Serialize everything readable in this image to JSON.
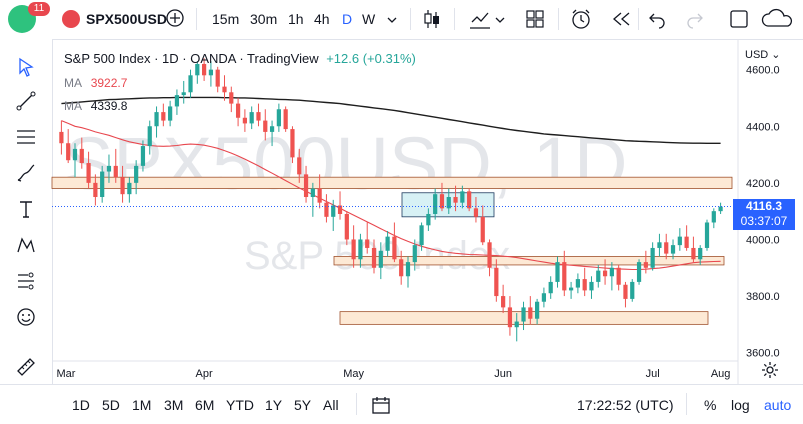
{
  "toolbar": {
    "badge_count": "11",
    "symbol": "SPX500USD",
    "intervals": [
      "15m",
      "30m",
      "1h",
      "4h",
      "D",
      "W"
    ],
    "active_interval": "D"
  },
  "legend": {
    "title": "S&P 500 Index · 1D · OANDA · TradingView",
    "change": "+12.6 (+0.31%)",
    "ma1_label": "MA",
    "ma1_value": "3922.7",
    "ma2_label": "MA",
    "ma2_value": "4339.8"
  },
  "watermark": {
    "symbol": "SPX500USD, 1D",
    "name": "S&P 500 Index"
  },
  "price_axis": {
    "currency": "USD",
    "ticks": [
      "4600.0",
      "4400.0",
      "4200.0",
      "4000.0",
      "3800.0",
      "3600.0"
    ],
    "last_price": "4116.3",
    "countdown": "03:37:07"
  },
  "time_axis": {
    "ticks": [
      "Mar",
      "Apr",
      "May",
      "Jun",
      "Jul",
      "Aug"
    ]
  },
  "bottom": {
    "ranges": [
      "1D",
      "5D",
      "1M",
      "3M",
      "6M",
      "YTD",
      "1Y",
      "5Y",
      "All"
    ],
    "clock": "17:22:52 (UTC)",
    "percent": "%",
    "log": "log",
    "auto": "auto"
  },
  "colors": {
    "up": "#26a69a",
    "down": "#ef5350",
    "accent": "#2962ff",
    "ma_fast": "#e8474e",
    "ma_slow": "#1e1e1e",
    "zone_fill": "#fde9d5",
    "zone_border": "#a0522d",
    "box_fill": "#c9ecf2",
    "badge": "#2ec27e"
  },
  "chart_data": {
    "type": "candlestick",
    "ylim": [
      3560,
      4680
    ],
    "x_ticks": [
      "Mar",
      "Apr",
      "May",
      "Jun",
      "Jul",
      "Aug"
    ],
    "ohlc": [
      [
        4380,
        4420,
        4300,
        4340
      ],
      [
        4340,
        4390,
        4270,
        4280
      ],
      [
        4280,
        4340,
        4220,
        4320
      ],
      [
        4320,
        4360,
        4250,
        4270
      ],
      [
        4270,
        4310,
        4180,
        4200
      ],
      [
        4200,
        4230,
        4120,
        4150
      ],
      [
        4150,
        4260,
        4130,
        4240
      ],
      [
        4240,
        4300,
        4200,
        4260
      ],
      [
        4260,
        4320,
        4200,
        4220
      ],
      [
        4220,
        4260,
        4130,
        4160
      ],
      [
        4160,
        4220,
        4130,
        4200
      ],
      [
        4200,
        4280,
        4160,
        4260
      ],
      [
        4260,
        4350,
        4240,
        4330
      ],
      [
        4330,
        4420,
        4300,
        4400
      ],
      [
        4400,
        4470,
        4360,
        4450
      ],
      [
        4450,
        4480,
        4400,
        4420
      ],
      [
        4420,
        4490,
        4400,
        4470
      ],
      [
        4470,
        4530,
        4440,
        4510
      ],
      [
        4510,
        4560,
        4480,
        4520
      ],
      [
        4520,
        4600,
        4500,
        4580
      ],
      [
        4580,
        4630,
        4550,
        4620
      ],
      [
        4620,
        4640,
        4560,
        4580
      ],
      [
        4580,
        4630,
        4540,
        4600
      ],
      [
        4600,
        4610,
        4520,
        4540
      ],
      [
        4540,
        4580,
        4490,
        4520
      ],
      [
        4520,
        4540,
        4450,
        4480
      ],
      [
        4480,
        4500,
        4400,
        4430
      ],
      [
        4430,
        4460,
        4380,
        4410
      ],
      [
        4410,
        4470,
        4390,
        4450
      ],
      [
        4450,
        4480,
        4400,
        4420
      ],
      [
        4420,
        4460,
        4350,
        4380
      ],
      [
        4380,
        4420,
        4330,
        4400
      ],
      [
        4400,
        4480,
        4380,
        4460
      ],
      [
        4460,
        4470,
        4380,
        4390
      ],
      [
        4390,
        4400,
        4270,
        4290
      ],
      [
        4290,
        4320,
        4200,
        4230
      ],
      [
        4230,
        4260,
        4130,
        4150
      ],
      [
        4150,
        4200,
        4080,
        4180
      ],
      [
        4180,
        4230,
        4110,
        4130
      ],
      [
        4130,
        4160,
        4060,
        4080
      ],
      [
        4080,
        4140,
        4030,
        4120
      ],
      [
        4120,
        4170,
        4070,
        4090
      ],
      [
        4090,
        4100,
        3980,
        4000
      ],
      [
        4000,
        4050,
        3900,
        3930
      ],
      [
        3930,
        4020,
        3900,
        4000
      ],
      [
        4000,
        4060,
        3950,
        3970
      ],
      [
        3970,
        4000,
        3880,
        3900
      ],
      [
        3900,
        3990,
        3860,
        3960
      ],
      [
        3960,
        4030,
        3940,
        4010
      ],
      [
        4010,
        4060,
        3920,
        3930
      ],
      [
        3930,
        3960,
        3840,
        3870
      ],
      [
        3870,
        3940,
        3830,
        3920
      ],
      [
        3920,
        4000,
        3890,
        3980
      ],
      [
        3980,
        4060,
        3960,
        4050
      ],
      [
        4050,
        4110,
        4030,
        4090
      ],
      [
        4090,
        4180,
        4070,
        4160
      ],
      [
        4160,
        4200,
        4100,
        4110
      ],
      [
        4110,
        4180,
        4090,
        4150
      ],
      [
        4150,
        4190,
        4100,
        4130
      ],
      [
        4130,
        4190,
        4110,
        4170
      ],
      [
        4170,
        4180,
        4100,
        4110
      ],
      [
        4110,
        4150,
        4060,
        4080
      ],
      [
        4080,
        4120,
        3980,
        3990
      ],
      [
        3990,
        4000,
        3870,
        3900
      ],
      [
        3900,
        3930,
        3780,
        3800
      ],
      [
        3800,
        3840,
        3740,
        3760
      ],
      [
        3760,
        3800,
        3660,
        3690
      ],
      [
        3690,
        3740,
        3640,
        3710
      ],
      [
        3710,
        3780,
        3680,
        3760
      ],
      [
        3760,
        3800,
        3700,
        3720
      ],
      [
        3720,
        3790,
        3700,
        3780
      ],
      [
        3780,
        3830,
        3760,
        3810
      ],
      [
        3810,
        3870,
        3790,
        3850
      ],
      [
        3850,
        3940,
        3830,
        3920
      ],
      [
        3920,
        3960,
        3800,
        3820
      ],
      [
        3820,
        3850,
        3790,
        3830
      ],
      [
        3830,
        3880,
        3810,
        3860
      ],
      [
        3860,
        3900,
        3800,
        3820
      ],
      [
        3820,
        3870,
        3790,
        3850
      ],
      [
        3850,
        3910,
        3830,
        3890
      ],
      [
        3890,
        3930,
        3840,
        3870
      ],
      [
        3870,
        3920,
        3820,
        3900
      ],
      [
        3900,
        3910,
        3820,
        3840
      ],
      [
        3840,
        3850,
        3760,
        3790
      ],
      [
        3790,
        3860,
        3780,
        3850
      ],
      [
        3850,
        3930,
        3840,
        3920
      ],
      [
        3920,
        3960,
        3880,
        3900
      ],
      [
        3900,
        3990,
        3890,
        3970
      ],
      [
        3970,
        4020,
        3940,
        3990
      ],
      [
        3990,
        4020,
        3930,
        3950
      ],
      [
        3950,
        4000,
        3930,
        3980
      ],
      [
        3980,
        4040,
        3960,
        4010
      ],
      [
        4010,
        4050,
        3960,
        3970
      ],
      [
        3970,
        4010,
        3920,
        3930
      ],
      [
        3930,
        3980,
        3910,
        3970
      ],
      [
        3970,
        4070,
        3960,
        4060
      ],
      [
        4060,
        4110,
        4040,
        4100
      ],
      [
        4100,
        4130,
        4090,
        4116
      ]
    ],
    "series": [
      {
        "name": "MA",
        "values": [
          4420,
          4410,
          4400,
          4395,
          4388,
          4380,
          4374,
          4368,
          4360,
          4352,
          4345,
          4340,
          4335,
          4332,
          4330,
          4329,
          4330,
          4332,
          4335,
          4337,
          4336,
          4333,
          4328,
          4322,
          4314,
          4305,
          4295,
          4284,
          4272,
          4260,
          4247,
          4234,
          4221,
          4208,
          4195,
          4182,
          4170,
          4158,
          4146,
          4134,
          4122,
          4110,
          4098,
          4086,
          4074,
          4062,
          4050,
          4038,
          4026,
          4014,
          4003,
          3993,
          3984,
          3976,
          3969,
          3963,
          3958,
          3954,
          3951,
          3949,
          3947,
          3946,
          3945,
          3944,
          3943,
          3941,
          3939,
          3936,
          3932,
          3928,
          3924,
          3920,
          3916,
          3913,
          3911,
          3909,
          3907,
          3905,
          3903,
          3901,
          3899,
          3897,
          3896,
          3895,
          3894,
          3894,
          3895,
          3897,
          3899,
          3902,
          3906,
          3910,
          3914,
          3918,
          3920,
          3921,
          3922,
          3922.7
        ]
      },
      {
        "name": "MA",
        "values": [
          4480,
          4482,
          4484,
          4486,
          4488,
          4490,
          4492,
          4494,
          4495,
          4496,
          4497,
          4498,
          4499,
          4500,
          4500,
          4501,
          4501,
          4502,
          4502,
          4502,
          4502,
          4502,
          4502,
          4502,
          4501,
          4501,
          4500,
          4500,
          4499,
          4498,
          4497,
          4496,
          4495,
          4494,
          4493,
          4492,
          4490,
          4488,
          4486,
          4484,
          4482,
          4480,
          4477,
          4474,
          4471,
          4468,
          4465,
          4462,
          4459,
          4456,
          4452,
          4448,
          4444,
          4440,
          4436,
          4432,
          4428,
          4424,
          4420,
          4416,
          4412,
          4408,
          4404,
          4400,
          4396,
          4392,
          4388,
          4385,
          4382,
          4379,
          4376,
          4373,
          4371,
          4369,
          4367,
          4365,
          4363,
          4361,
          4359,
          4357,
          4355,
          4353,
          4351,
          4349,
          4348,
          4347,
          4346,
          4345,
          4344,
          4343,
          4342,
          4341,
          4340.5,
          4340.2,
          4340,
          4339.9,
          4339.8,
          4339.8
        ]
      }
    ],
    "zones": [
      {
        "from": 4180,
        "to": 4220
      },
      {
        "from": 3910,
        "to": 3940
      },
      {
        "from": 3700,
        "to": 3745
      }
    ],
    "box": {
      "from": 4080,
      "to": 4165
    },
    "last_price": 4116.3
  }
}
